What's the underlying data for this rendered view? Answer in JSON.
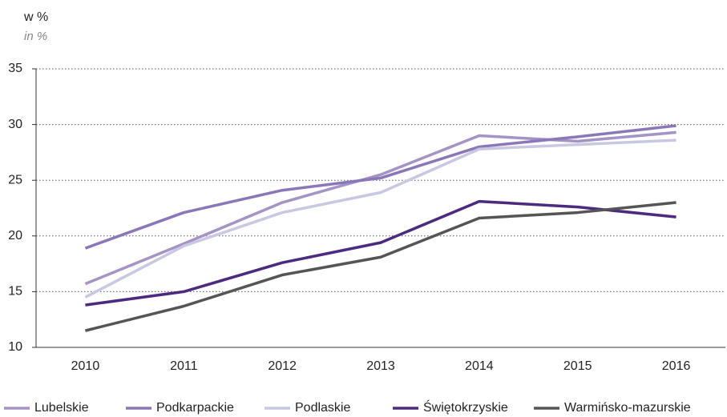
{
  "chart_data": {
    "type": "line",
    "unit_label": "w %",
    "unit_label_en": "in %",
    "categories": [
      "2010",
      "2011",
      "2012",
      "2013",
      "2014",
      "2015",
      "2016"
    ],
    "series": [
      {
        "name": "Lubelskie",
        "color": "#a593c5",
        "values": [
          15.7,
          19.3,
          23.0,
          25.5,
          29.0,
          28.5,
          29.3
        ]
      },
      {
        "name": "Podkarpackie",
        "color": "#8b77b8",
        "values": [
          18.9,
          22.1,
          24.1,
          25.2,
          28.0,
          28.9,
          29.9
        ]
      },
      {
        "name": "Podlaskie",
        "color": "#c9c8e3",
        "values": [
          14.5,
          19.1,
          22.1,
          23.9,
          27.8,
          28.2,
          28.6
        ]
      },
      {
        "name": "Świętokrzyskie",
        "color": "#4b2a7f",
        "values": [
          13.8,
          15.0,
          17.6,
          19.4,
          23.1,
          22.6,
          21.7
        ]
      },
      {
        "name": "Warmińsko-mazurskie",
        "color": "#555555",
        "values": [
          11.5,
          13.7,
          16.5,
          18.1,
          21.6,
          22.1,
          23.0
        ]
      }
    ],
    "ylim": [
      10,
      35
    ],
    "yticks": [
      10,
      15,
      20,
      25,
      30,
      35
    ],
    "grid": true,
    "legend": "bottom"
  }
}
